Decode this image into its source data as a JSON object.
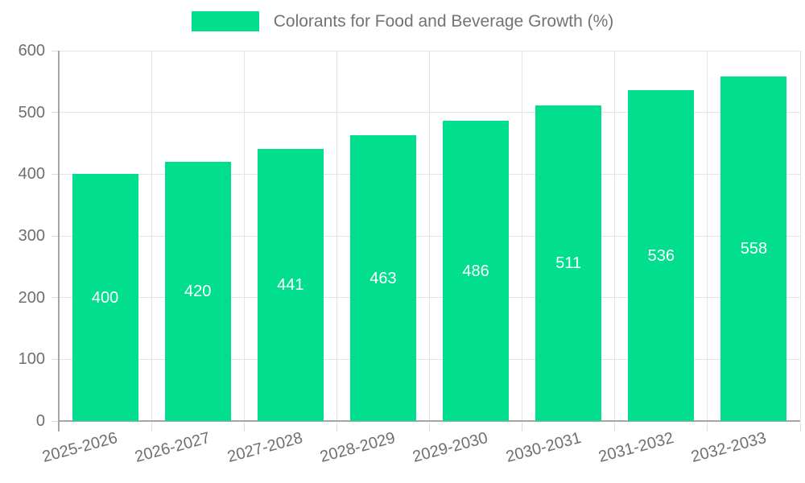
{
  "chart_data": {
    "type": "bar",
    "title": "Colorants for Food and Beverage Growth (%)",
    "categories": [
      "2025-2026",
      "2026-2027",
      "2027-2028",
      "2028-2029",
      "2029-2030",
      "2030-2031",
      "2031-2032",
      "2032-2033"
    ],
    "values": [
      400,
      420,
      441,
      463,
      486,
      511,
      536,
      558
    ],
    "xlabel": "",
    "ylabel": "",
    "ylim": [
      0,
      600
    ],
    "yticks": [
      0,
      100,
      200,
      300,
      400,
      500,
      600
    ],
    "grid": true,
    "legend_position": "top",
    "value_labels": "inside-center"
  },
  "colors": {
    "bar": "#00de8e",
    "grid": "#e4e4e4",
    "axis": "#a6a6a6",
    "tick": "#dcdcdc",
    "text": "#6f6f6f",
    "value_label": "#ffffff",
    "background": "#ffffff"
  }
}
